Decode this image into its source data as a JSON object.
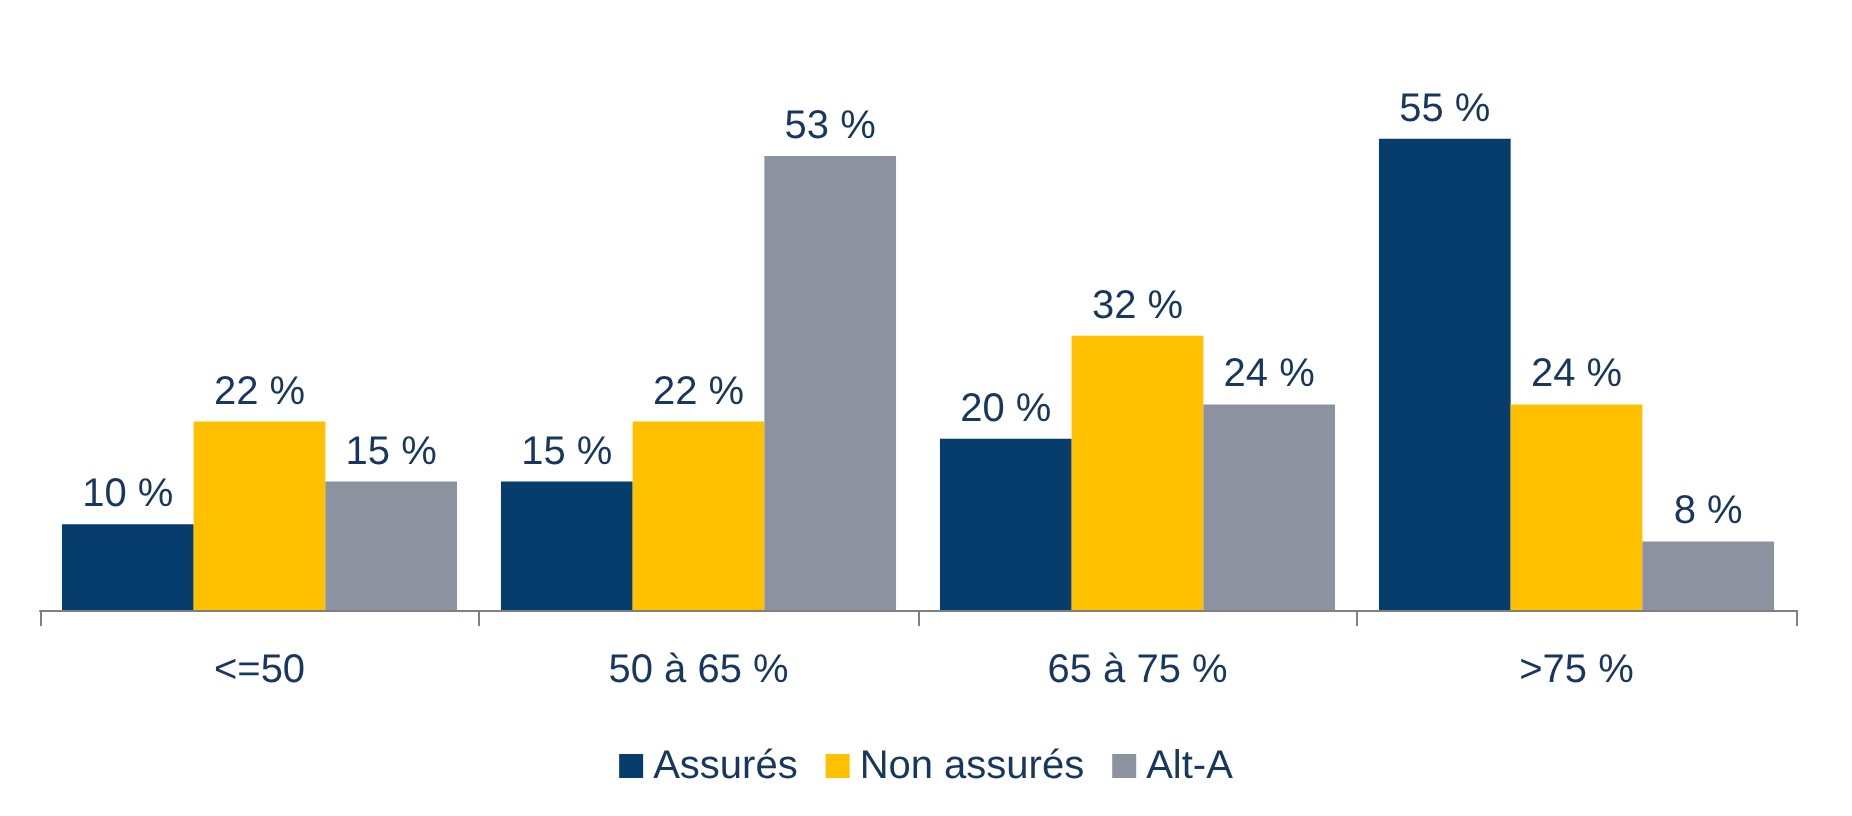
{
  "chart_data": {
    "type": "bar",
    "categories": [
      "<=50",
      "50 à 65 %",
      "65 à 75 %",
      ">75 %"
    ],
    "series": [
      {
        "name": "Assurés",
        "color": "#063d6d",
        "values": [
          10,
          15,
          20,
          55
        ],
        "value_labels": [
          "10 %",
          "15 %",
          "20 %",
          "55 %"
        ]
      },
      {
        "name": "Non assurés",
        "color": "#ffc000",
        "values": [
          22,
          22,
          32,
          24
        ],
        "value_labels": [
          "22 %",
          "22 %",
          "32 %",
          "24 %"
        ]
      },
      {
        "name": "Alt-A",
        "color": "#8c929f",
        "values": [
          15,
          53,
          24,
          8
        ],
        "value_labels": [
          "15 %",
          "53 %",
          "24 %",
          "8 %"
        ]
      }
    ],
    "legend": "bottom",
    "grid": false
  }
}
